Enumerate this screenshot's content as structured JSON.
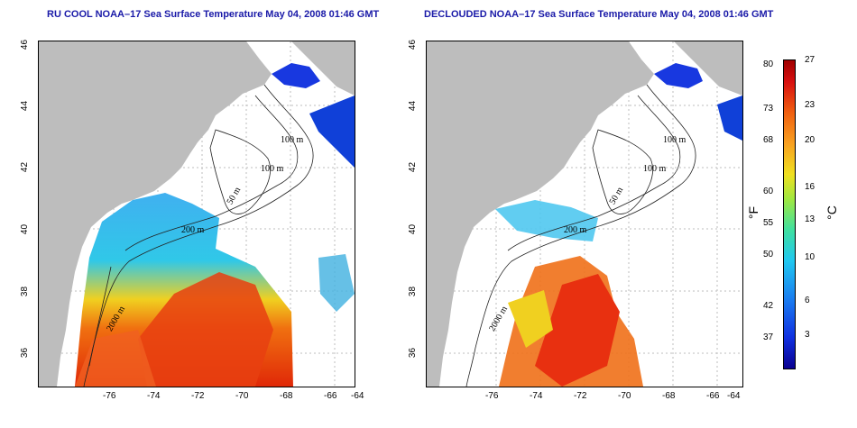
{
  "left_panel": {
    "title": "RU COOL NOAA–17 Sea Surface Temperature May 04, 2008 01:46 GMT"
  },
  "right_panel": {
    "title": "DECLOUDED NOAA–17 Sea Surface Temperature May 04, 2008 01:46 GMT"
  },
  "axes": {
    "x_ticks": [
      "-76",
      "-74",
      "-72",
      "-70",
      "-68",
      "-66",
      "-64"
    ],
    "y_ticks": [
      "46",
      "44",
      "42",
      "40",
      "38",
      "36"
    ]
  },
  "contours": {
    "m100a": "100 m",
    "m100b": "100 m",
    "m50": "50 m",
    "m200": "200 m",
    "m2000": "2000 m"
  },
  "colorbar": {
    "fahrenheit_ticks": [
      "80",
      "73",
      "68",
      "60",
      "55",
      "50",
      "42",
      "37"
    ],
    "celsius_ticks": [
      "27",
      "23",
      "20",
      "16",
      "13",
      "10",
      "6",
      "3"
    ],
    "unit_f": "°F",
    "unit_c": "°C"
  },
  "colors": {
    "land": "#bdbdbd",
    "title": "#1a1aa8",
    "warm": "#e83010",
    "cool": "#20a0f0",
    "cold": "#1030e0"
  }
}
